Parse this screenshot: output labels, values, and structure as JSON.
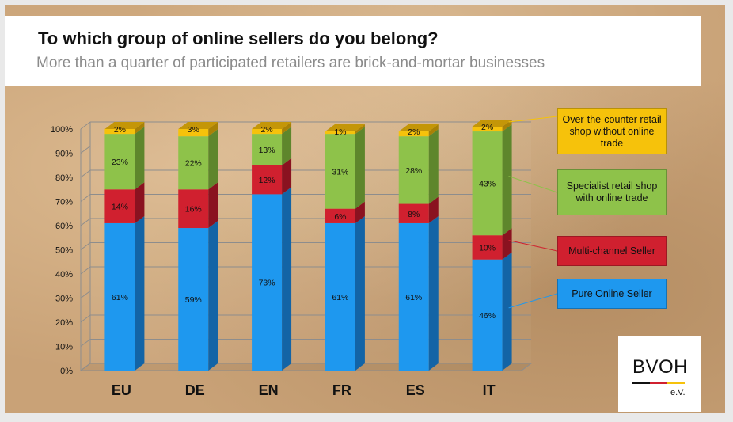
{
  "header": {
    "title": "To which group of online sellers do you belong?",
    "subtitle": "More than a quarter of participated retailers are brick-and-mortar businesses"
  },
  "logo": {
    "name": "BVOH",
    "suffix": "e.V."
  },
  "colors": {
    "pure_online": "#1e98ef",
    "multi_channel": "#d0202f",
    "specialist": "#8ec24a",
    "counter": "#f6c20b"
  },
  "chart_data": {
    "type": "bar",
    "stacked": true,
    "categories": [
      "EU",
      "DE",
      "EN",
      "FR",
      "ES",
      "IT"
    ],
    "series": [
      {
        "name": "Pure Online Seller",
        "values": [
          61,
          59,
          73,
          61,
          61,
          46
        ],
        "labels": [
          "61%",
          "59%",
          "73%",
          "61%",
          "61%",
          "46%"
        ]
      },
      {
        "name": "Multi-channel Seller",
        "values": [
          14,
          16,
          12,
          6,
          8,
          10
        ],
        "labels": [
          "14%",
          "16%",
          "12%",
          "6%",
          "8%",
          "10%"
        ]
      },
      {
        "name": "Specialist retail shop with online trade",
        "values": [
          23,
          22,
          13,
          31,
          28,
          43
        ],
        "labels": [
          "23%",
          "22%",
          "13%",
          "31%",
          "28%",
          "43%"
        ]
      },
      {
        "name": "Over-the-counter retail shop without online trade",
        "values": [
          2,
          3,
          2,
          1,
          2,
          2
        ],
        "labels": [
          "2%",
          "3%",
          "2%",
          "1%",
          "2%",
          "2%"
        ]
      }
    ],
    "y_ticks": [
      "0%",
      "10%",
      "20%",
      "30%",
      "40%",
      "50%",
      "60%",
      "70%",
      "80%",
      "90%",
      "100%"
    ],
    "ylim": [
      0,
      100
    ],
    "grid": true,
    "legend_position": "right"
  }
}
